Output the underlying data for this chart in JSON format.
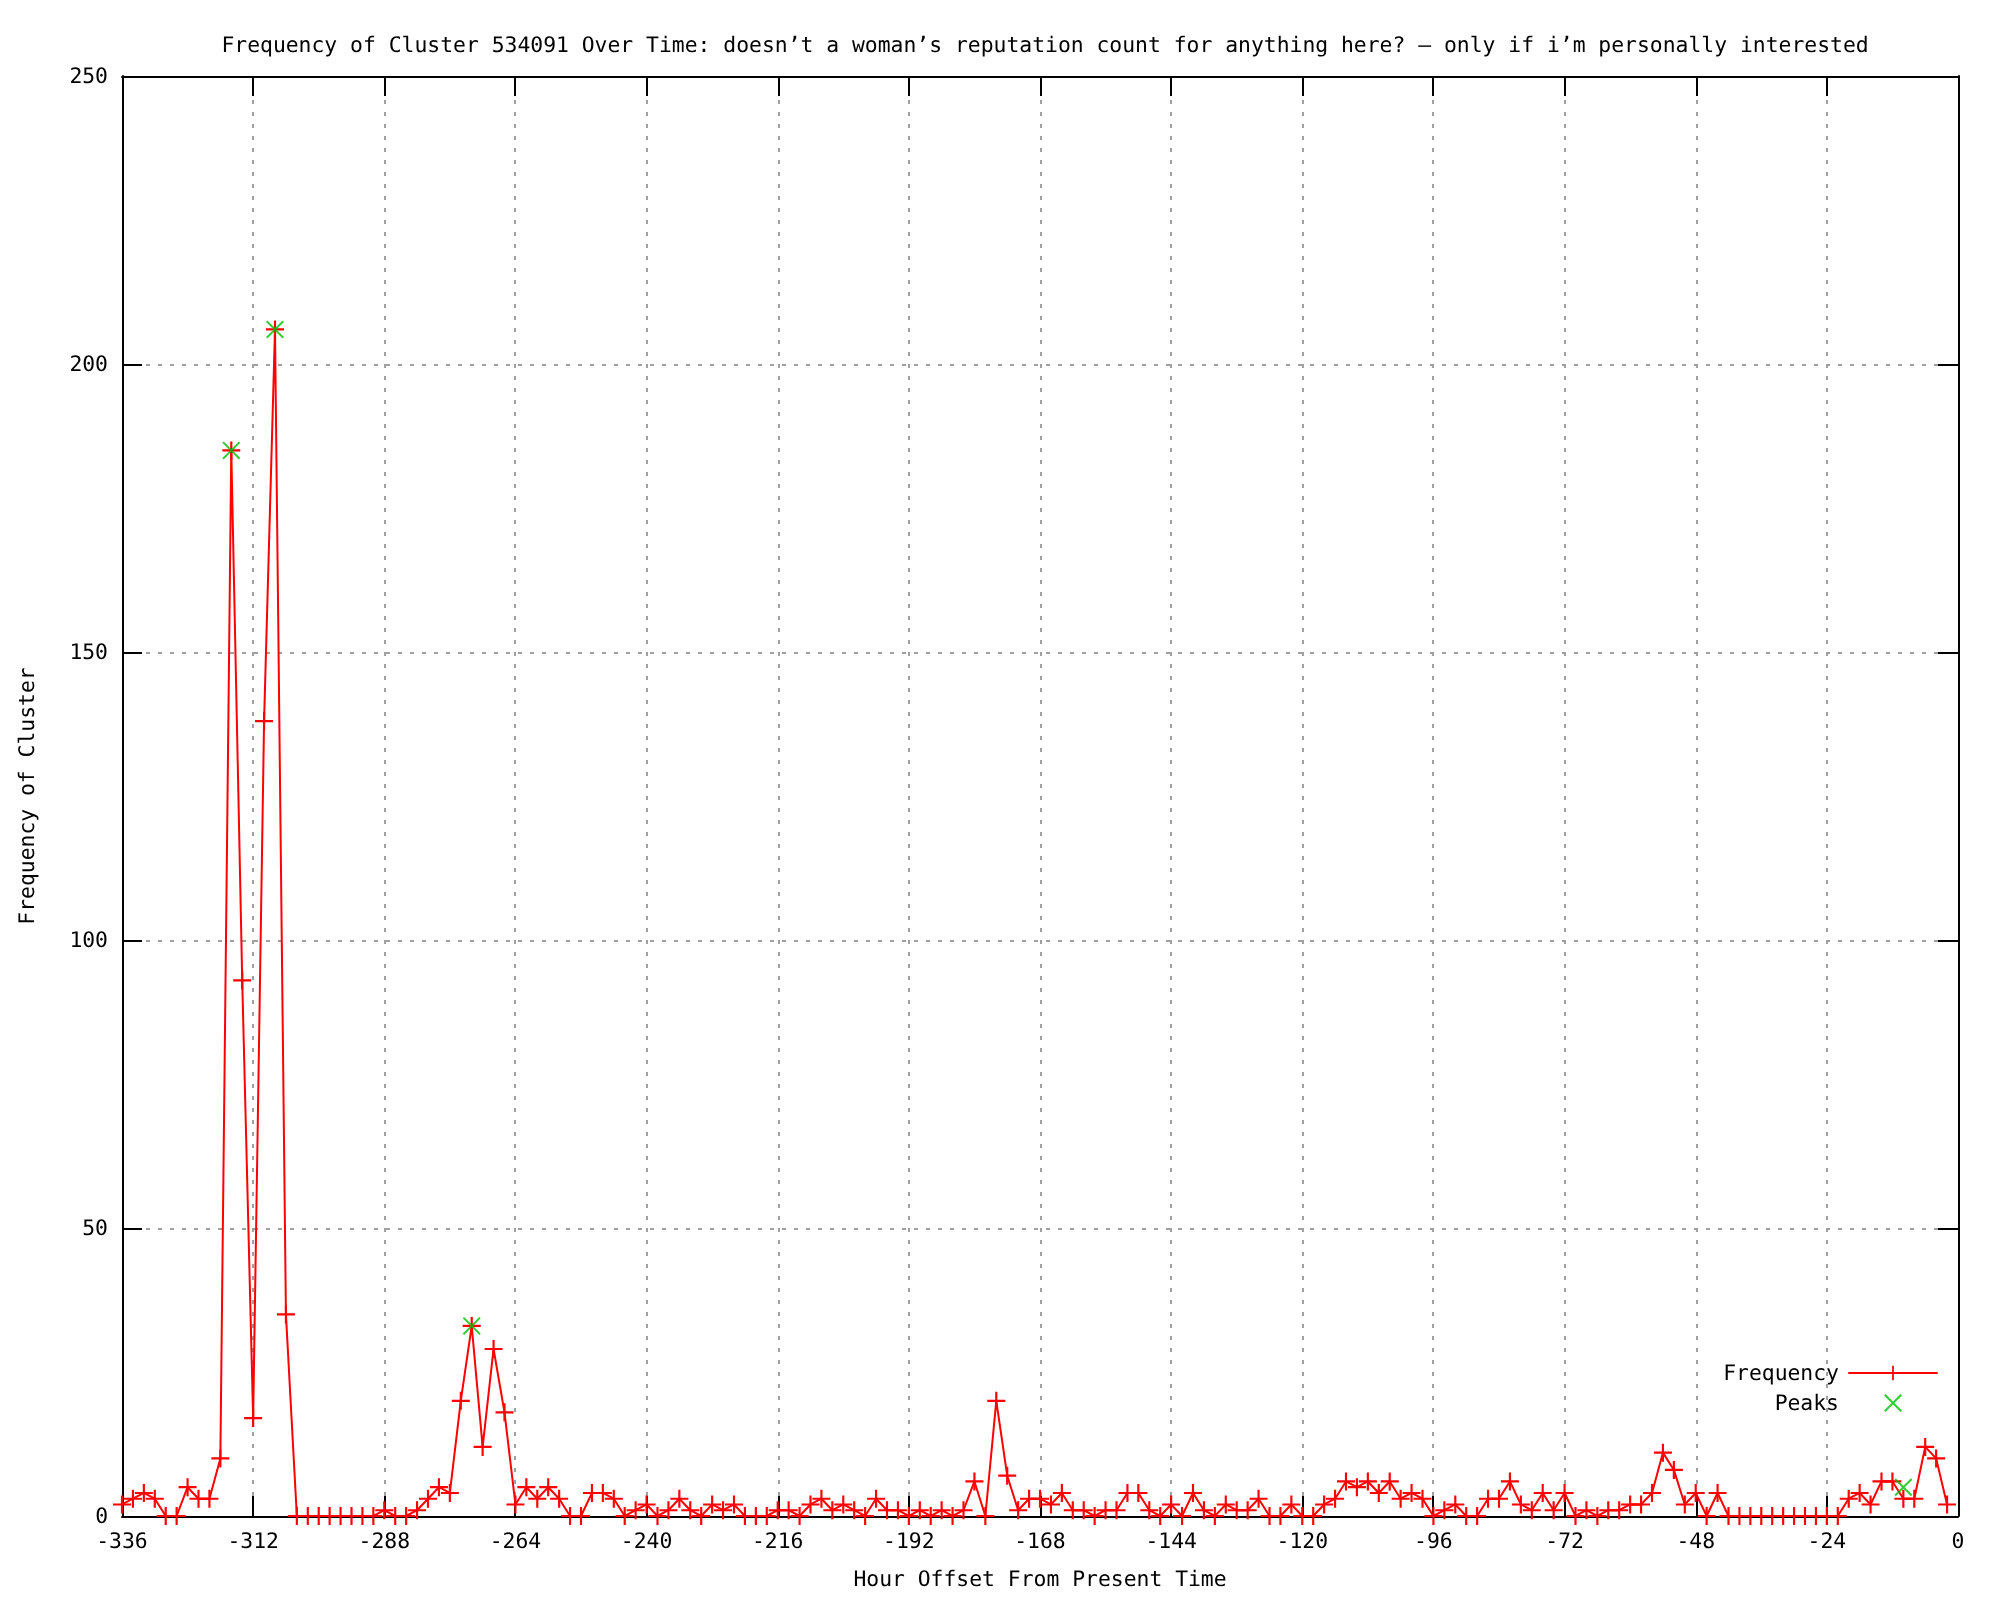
{
  "chart_data": {
    "type": "line",
    "title": "Frequency of Cluster 534091 Over Time: doesn’t a woman’s reputation count for anything here? – only if i’m personally interested",
    "xlabel": "Hour Offset From Present Time",
    "ylabel": "Frequency of Cluster",
    "xlim": [
      -336,
      0
    ],
    "xticks": [
      -336,
      -312,
      -288,
      -264,
      -240,
      -216,
      -192,
      -168,
      -144,
      -120,
      -96,
      -72,
      -48,
      -24,
      0
    ],
    "ylim": [
      0,
      250
    ],
    "yticks": [
      0,
      50,
      100,
      150,
      200,
      250
    ],
    "grid": true,
    "legend": "bottom right",
    "marker": "cross",
    "series": [
      {
        "name": "Frequency",
        "color": "#ff0000",
        "x": [
          -336,
          -334,
          -332,
          -330,
          -328,
          -326,
          -324,
          -322,
          -320,
          -318,
          -316,
          -314,
          -312,
          -310,
          -308,
          -306,
          -304,
          -302,
          -300,
          -298,
          -296,
          -294,
          -292,
          -290,
          -288,
          -286,
          -284,
          -282,
          -280,
          -278,
          -276,
          -274,
          -272,
          -270,
          -268,
          -266,
          -264,
          -262,
          -260,
          -258,
          -256,
          -254,
          -252,
          -250,
          -248,
          -246,
          -244,
          -242,
          -240,
          -238,
          -236,
          -234,
          -232,
          -230,
          -228,
          -226,
          -224,
          -222,
          -220,
          -218,
          -216,
          -214,
          -212,
          -210,
          -208,
          -206,
          -204,
          -202,
          -200,
          -198,
          -196,
          -194,
          -192,
          -190,
          -188,
          -186,
          -184,
          -182,
          -180,
          -178,
          -176,
          -174,
          -172,
          -170,
          -168,
          -166,
          -164,
          -162,
          -160,
          -158,
          -156,
          -154,
          -152,
          -150,
          -148,
          -146,
          -144,
          -142,
          -140,
          -138,
          -136,
          -134,
          -132,
          -130,
          -128,
          -126,
          -124,
          -122,
          -120,
          -118,
          -116,
          -114,
          -112,
          -110,
          -108,
          -106,
          -104,
          -102,
          -100,
          -98,
          -96,
          -94,
          -92,
          -90,
          -88,
          -86,
          -84,
          -82,
          -80,
          -78,
          -76,
          -74,
          -72,
          -70,
          -68,
          -66,
          -64,
          -62,
          -60,
          -58,
          -56,
          -54,
          -52,
          -50,
          -48,
          -46,
          -44,
          -42,
          -40,
          -38,
          -36,
          -34,
          -32,
          -30,
          -28,
          -26,
          -24,
          -22,
          -20,
          -18,
          -16,
          -14,
          -12,
          -10,
          -8,
          -6,
          -4,
          -2
        ],
        "values": [
          2,
          3,
          4,
          3,
          0,
          0,
          5,
          3,
          3,
          10,
          185,
          93,
          17,
          138,
          206,
          35,
          0,
          0,
          0,
          0,
          0,
          0,
          0,
          0,
          1,
          0,
          0,
          1,
          3,
          5,
          4,
          20,
          33,
          12,
          29,
          18,
          2,
          5,
          3,
          5,
          3,
          0,
          0,
          4,
          4,
          3,
          0,
          1,
          2,
          0,
          1,
          3,
          1,
          0,
          2,
          1,
          2,
          0,
          0,
          0,
          1,
          1,
          0,
          2,
          3,
          1,
          2,
          1,
          0,
          3,
          1,
          1,
          0,
          1,
          0,
          1,
          0,
          1,
          6,
          0,
          20,
          7,
          1,
          3,
          3,
          2,
          4,
          1,
          1,
          0,
          1,
          1,
          4,
          4,
          1,
          0,
          2,
          0,
          4,
          1,
          0,
          2,
          1,
          1,
          3,
          0,
          0,
          2,
          0,
          0,
          2,
          3,
          6,
          5,
          6,
          4,
          6,
          3,
          4,
          3,
          0,
          1,
          2,
          0,
          0,
          3,
          3,
          6,
          2,
          1,
          4,
          1,
          4,
          0,
          1,
          0,
          1,
          1,
          2,
          2,
          4,
          11,
          8,
          2,
          4,
          0,
          4,
          0,
          0,
          0,
          0,
          0,
          0,
          0,
          0,
          0,
          0,
          0,
          3,
          4,
          2,
          6,
          6,
          3,
          3,
          12,
          10,
          2
        ]
      },
      {
        "name": "Peaks",
        "type": "scatter",
        "color": "#00c000",
        "x": [
          -316,
          -308,
          -272,
          -10
        ],
        "values": [
          185,
          206,
          33,
          5
        ]
      }
    ]
  }
}
